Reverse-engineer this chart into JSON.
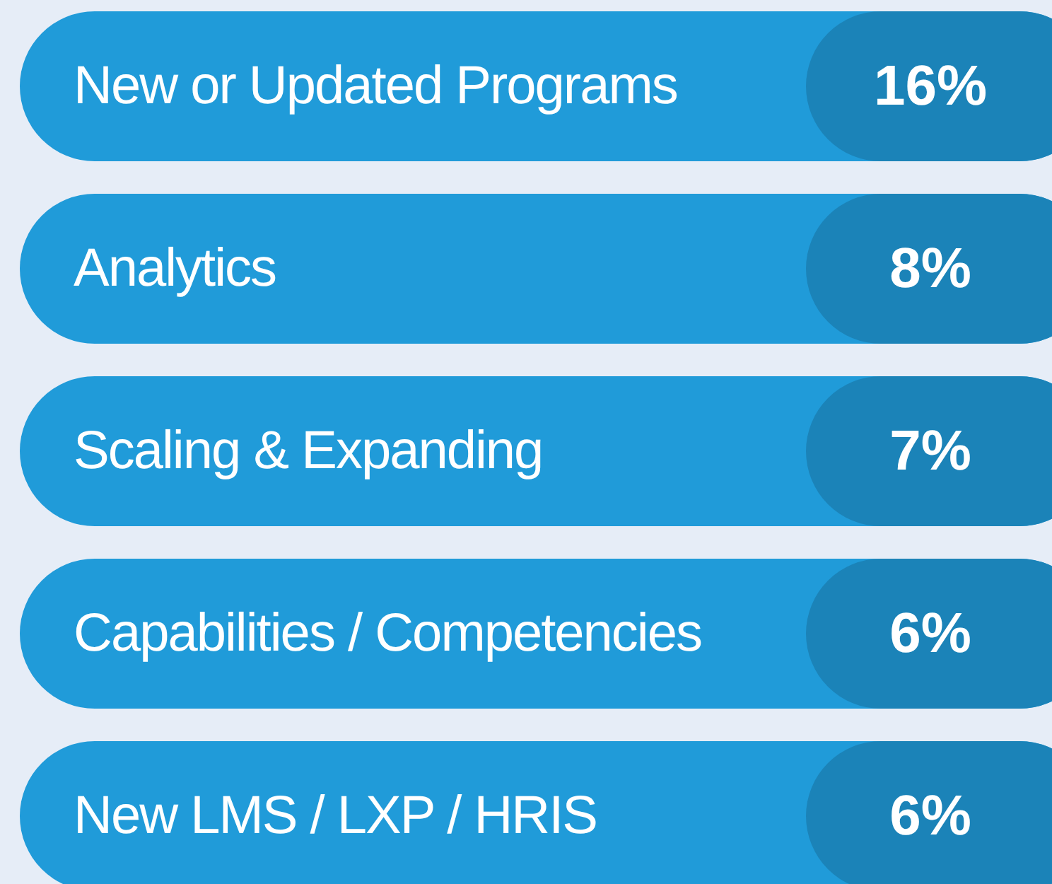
{
  "chart_data": {
    "type": "other",
    "categories": [
      "New or Updated Programs",
      "Analytics",
      "Scaling & Expanding",
      "Capabilities / Competencies",
      "New LMS / LXP / HRIS"
    ],
    "values": [
      16,
      8,
      7,
      6,
      6
    ],
    "value_labels": [
      "16%",
      "8%",
      "7%",
      "6%",
      "6%"
    ],
    "color": "#1b83b8"
  }
}
